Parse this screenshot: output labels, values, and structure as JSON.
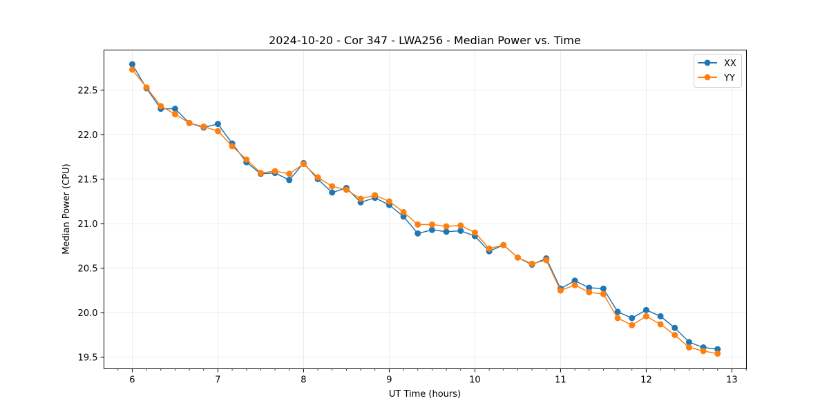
{
  "chart_data": {
    "type": "line",
    "title": "2024-10-20 - Cor 347 - LWA256 - Median Power vs. Time",
    "xlabel": "UT Time (hours)",
    "ylabel": "Median Power (CPU)",
    "xlim": [
      5.67,
      13.17
    ],
    "ylim": [
      19.37,
      22.95
    ],
    "xticks": [
      6,
      7,
      8,
      9,
      10,
      11,
      12,
      13
    ],
    "xtick_labels": [
      "6",
      "7",
      "8",
      "9",
      "10",
      "11",
      "12",
      "13"
    ],
    "yticks": [
      19.5,
      20.0,
      20.5,
      21.0,
      21.5,
      22.0,
      22.5
    ],
    "ytick_labels": [
      "19.5",
      "20.0",
      "20.5",
      "21.0",
      "21.5",
      "22.0",
      "22.5"
    ],
    "grid": true,
    "legend_position": "top-right",
    "x": [
      6.0,
      6.1667,
      6.3333,
      6.5,
      6.6667,
      6.8333,
      7.0,
      7.1667,
      7.3333,
      7.5,
      7.6667,
      7.8333,
      8.0,
      8.1667,
      8.3333,
      8.5,
      8.6667,
      8.8333,
      9.0,
      9.1667,
      9.3333,
      9.5,
      9.6667,
      9.8333,
      10.0,
      10.1667,
      10.3333,
      10.5,
      10.6667,
      10.8333,
      11.0,
      11.1667,
      11.3333,
      11.5,
      11.6667,
      11.8333,
      12.0,
      12.1667,
      12.3333,
      12.5,
      12.6667,
      12.8333
    ],
    "series": [
      {
        "name": "XX",
        "color": "#1f77b4",
        "values": [
          22.79,
          22.52,
          22.29,
          22.29,
          22.13,
          22.08,
          22.12,
          21.9,
          21.69,
          21.56,
          21.57,
          21.49,
          21.68,
          21.5,
          21.35,
          21.4,
          21.24,
          21.29,
          21.21,
          21.08,
          20.89,
          20.93,
          20.91,
          20.92,
          20.86,
          20.69,
          20.76,
          20.62,
          20.54,
          20.61,
          20.27,
          20.36,
          20.28,
          20.27,
          20.01,
          19.94,
          20.03,
          19.96,
          19.83,
          19.67,
          19.61,
          19.59
        ]
      },
      {
        "name": "YY",
        "color": "#ff7f0e",
        "values": [
          22.73,
          22.53,
          22.32,
          22.23,
          22.13,
          22.09,
          22.04,
          21.87,
          21.72,
          21.57,
          21.59,
          21.56,
          21.67,
          21.52,
          21.42,
          21.38,
          21.28,
          21.32,
          21.25,
          21.13,
          20.99,
          20.99,
          20.97,
          20.98,
          20.9,
          20.72,
          20.76,
          20.62,
          20.55,
          20.59,
          20.25,
          20.31,
          20.23,
          20.21,
          19.94,
          19.86,
          19.96,
          19.87,
          19.75,
          19.61,
          19.57,
          19.54
        ]
      }
    ]
  }
}
